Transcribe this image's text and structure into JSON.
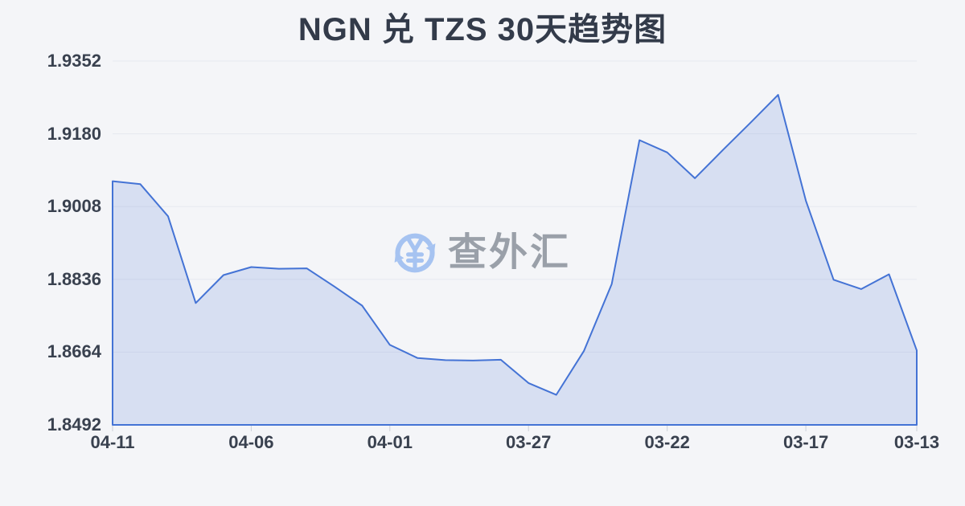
{
  "page": {
    "title": "NGN 兑 TZS 30天趋势图"
  },
  "watermark": {
    "text": "查外汇",
    "icon": "currency-exchange-refresh-icon"
  },
  "colors": {
    "background": "#f4f5f8",
    "title": "#333b4a",
    "axis_label": "#39414f",
    "line": "#4473d5",
    "area_fill": "rgba(68,115,213,0.16)",
    "grid": "#e6e9ef",
    "tick": "#ccd0d9",
    "watermark_text": "#9aa0a9",
    "watermark_icon": "#a6c3f1"
  },
  "chart_data": {
    "type": "area",
    "title": "NGN 兑 TZS 30天趋势图",
    "x": [
      "04-11",
      "04-10",
      "04-09",
      "04-08",
      "04-07",
      "04-06",
      "04-05",
      "04-04",
      "04-03",
      "04-02",
      "04-01",
      "03-31",
      "03-30",
      "03-29",
      "03-28",
      "03-27",
      "03-26",
      "03-25",
      "03-24",
      "03-23",
      "03-22",
      "03-21",
      "03-20",
      "03-19",
      "03-18",
      "03-17",
      "03-16",
      "03-15",
      "03-14",
      "03-13"
    ],
    "values": [
      1.9068,
      1.9061,
      1.8985,
      1.878,
      1.8846,
      1.8865,
      1.8861,
      1.8862,
      1.8819,
      1.8774,
      1.8681,
      1.865,
      1.8645,
      1.8644,
      1.8646,
      1.8591,
      1.8563,
      1.8667,
      1.8825,
      1.9165,
      1.9136,
      1.9075,
      1.9141,
      1.9206,
      1.9272,
      1.9022,
      1.8835,
      1.8813,
      1.8848,
      1.8668
    ],
    "x_tick_labels": [
      "04-11",
      "04-06",
      "04-01",
      "03-27",
      "03-22",
      "03-17",
      "03-13"
    ],
    "y_tick_labels": [
      "1.9352",
      "1.9180",
      "1.9008",
      "1.8836",
      "1.8664",
      "1.8492"
    ],
    "ylim": [
      1.8492,
      1.9352
    ],
    "xlabel": "",
    "ylabel": "",
    "grid": true,
    "legend_position": "none"
  }
}
